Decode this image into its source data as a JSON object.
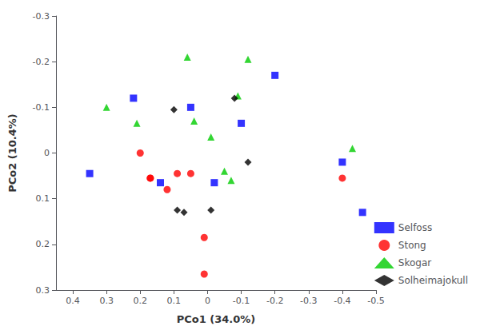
{
  "chart_data": {
    "type": "scatter",
    "xlabel": "PCo1 (34.0%)",
    "ylabel": "PCo2 (10.4%)",
    "series": [
      {
        "name": "Selfoss",
        "color": "#0000ff",
        "marker": "square",
        "x": [
          0.35,
          0.22,
          0.14,
          0.05,
          -0.02,
          -0.1,
          -0.2,
          -0.4,
          -0.46
        ],
        "values": [
          0.045,
          -0.12,
          0.065,
          -0.1,
          0.065,
          -0.065,
          -0.17,
          0.02,
          0.13
        ]
      },
      {
        "name": "Stong",
        "color": "#ff0000",
        "marker": "circle",
        "x": [
          0.2,
          0.17,
          0.17,
          0.12,
          0.09,
          0.05,
          0.01,
          0.01,
          -0.4
        ],
        "values": [
          0.0,
          0.055,
          0.055,
          0.08,
          0.045,
          0.045,
          0.185,
          0.265,
          0.055
        ]
      },
      {
        "name": "Skogar",
        "color": "#00cc00",
        "marker": "triangle",
        "x": [
          0.3,
          0.21,
          0.06,
          0.04,
          -0.01,
          -0.05,
          -0.07,
          -0.09,
          -0.12,
          -0.43
        ],
        "values": [
          -0.1,
          -0.065,
          -0.21,
          -0.07,
          -0.035,
          0.04,
          0.06,
          -0.125,
          -0.205,
          -0.01
        ]
      },
      {
        "name": "Solheimajokull",
        "color": "#000000",
        "marker": "diamond",
        "x": [
          0.1,
          0.09,
          0.07,
          -0.01,
          -0.08,
          -0.12
        ],
        "values": [
          -0.095,
          0.125,
          0.13,
          0.125,
          -0.12,
          0.02
        ]
      }
    ],
    "xlim": [
      0.45,
      -0.5
    ],
    "ylim": [
      0.3,
      -0.3
    ],
    "xticks": [
      0.4,
      0.3,
      0.2,
      0.1,
      0.0,
      -0.1,
      -0.2,
      -0.3,
      -0.4,
      -0.5
    ],
    "yticks": [
      -0.3,
      -0.2,
      -0.1,
      0.0,
      0.1,
      0.2,
      0.3
    ],
    "grid": false,
    "legend": "lower right"
  }
}
